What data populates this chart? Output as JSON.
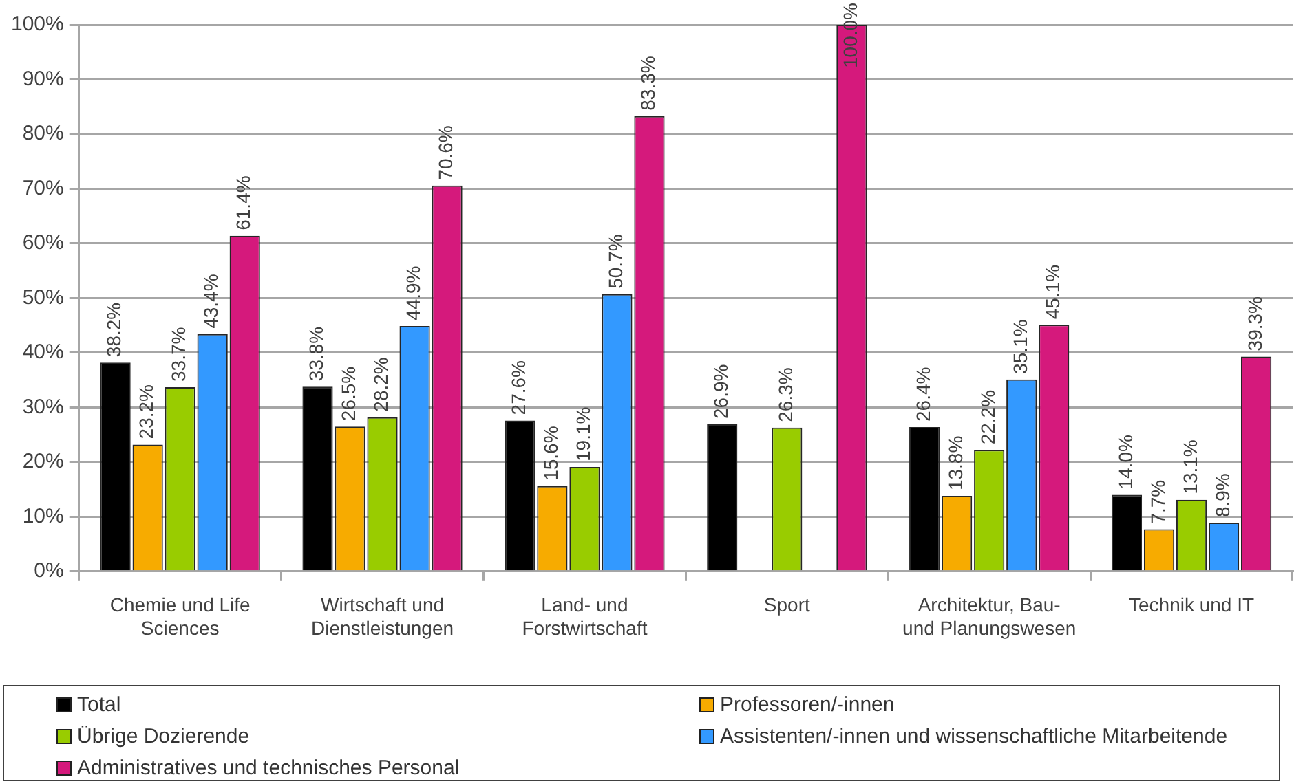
{
  "chart_data": {
    "type": "bar",
    "categories": [
      "Chemie und Life Sciences",
      "Wirtschaft und Dienstleistungen",
      "Land- und Forstwirtschaft",
      "Sport",
      "Architektur, Bau- und Planungswesen",
      "Technik und IT"
    ],
    "series": [
      {
        "name": "Total",
        "color": "#000000",
        "values": [
          38.2,
          33.8,
          27.6,
          26.9,
          26.4,
          14.0
        ],
        "value_labels": [
          "38.2%",
          "33.8%",
          "27.6%",
          "26.9%",
          "26.4%",
          "14.0%"
        ]
      },
      {
        "name": "Professoren/-innen",
        "color": "#f7ab00",
        "values": [
          23.2,
          26.5,
          15.6,
          null,
          13.8,
          7.7
        ],
        "value_labels": [
          "23.2%",
          "26.5%",
          "15.6%",
          null,
          "13.8%",
          "7.7%"
        ]
      },
      {
        "name": "Übrige Dozierende",
        "color": "#99cc00",
        "values": [
          33.7,
          28.2,
          19.1,
          26.3,
          22.2,
          13.1
        ],
        "value_labels": [
          "33.7%",
          "28.2%",
          "19.1%",
          "26.3%",
          "22.2%",
          "13.1%"
        ]
      },
      {
        "name": "Assistenten/-innen und wissenschaftliche Mitarbeitende",
        "color": "#3399ff",
        "values": [
          43.4,
          44.9,
          50.7,
          null,
          35.1,
          8.9
        ],
        "value_labels": [
          "43.4%",
          "44.9%",
          "50.7%",
          null,
          "35.1%",
          "8.9%"
        ]
      },
      {
        "name": "Administratives und technisches Personal",
        "color": "#d5197c",
        "values": [
          61.4,
          70.6,
          83.3,
          100.0,
          45.1,
          39.3
        ],
        "value_labels": [
          "61.4%",
          "70.6%",
          "83.3%",
          "100.0%",
          "45.1%",
          "39.3%"
        ]
      }
    ],
    "ylim": [
      0,
      100
    ],
    "yticks": [
      {
        "value": 0,
        "label": "0%"
      },
      {
        "value": 10,
        "label": "10%"
      },
      {
        "value": 20,
        "label": "20%"
      },
      {
        "value": 30,
        "label": "30%"
      },
      {
        "value": 40,
        "label": "40%"
      },
      {
        "value": 50,
        "label": "50%"
      },
      {
        "value": 60,
        "label": "60%"
      },
      {
        "value": 70,
        "label": "70%"
      },
      {
        "value": 80,
        "label": "80%"
      },
      {
        "value": 90,
        "label": "90%"
      },
      {
        "value": 100,
        "label": "100%"
      }
    ],
    "grid": "y",
    "legend": "bottom"
  }
}
